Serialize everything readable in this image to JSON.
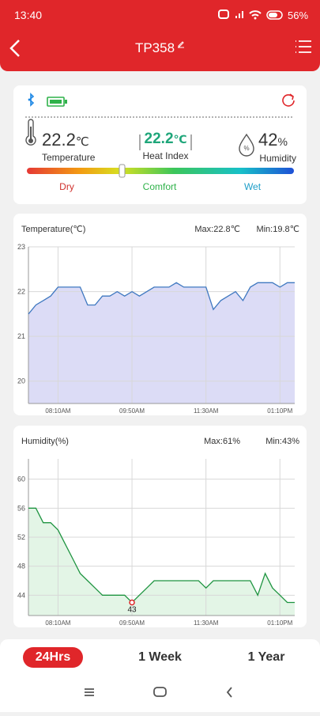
{
  "status_bar": {
    "time": "13:40",
    "battery": "56%"
  },
  "header": {
    "title": "TP358"
  },
  "summary": {
    "temperature": {
      "value": 22.2,
      "unit": "℃",
      "label": "Temperature"
    },
    "heat_index": {
      "value": 22.2,
      "unit": "℃",
      "label": "Heat Index"
    },
    "humidity": {
      "value": 42,
      "unit": "%",
      "label": "Humidity"
    },
    "scale": [
      "Dry",
      "Comfort",
      "Wet"
    ]
  },
  "chart_data": [
    {
      "type": "line",
      "title": "Temperature(℃)",
      "max_label": "Max:22.8℃",
      "min_label": "Min:19.8℃",
      "x": [
        "07:30AM",
        "07:40AM",
        "07:50AM",
        "08:00AM",
        "08:10AM",
        "08:20AM",
        "08:30AM",
        "08:40AM",
        "08:50AM",
        "09:00AM",
        "09:10AM",
        "09:20AM",
        "09:30AM",
        "09:40AM",
        "09:50AM",
        "10:00AM",
        "10:10AM",
        "10:20AM",
        "10:30AM",
        "10:40AM",
        "10:50AM",
        "11:00AM",
        "11:10AM",
        "11:20AM",
        "11:30AM",
        "11:40AM",
        "11:50AM",
        "12:00PM",
        "12:10PM",
        "12:20PM",
        "12:30PM",
        "12:40PM",
        "12:50PM",
        "01:00PM",
        "01:10PM",
        "01:20PM",
        "01:30PM"
      ],
      "values": [
        21.5,
        21.7,
        21.8,
        21.9,
        22.1,
        22.1,
        22.1,
        22.1,
        21.7,
        21.7,
        21.9,
        21.9,
        22.0,
        21.9,
        22.0,
        21.9,
        22.0,
        22.1,
        22.1,
        22.1,
        22.2,
        22.1,
        22.1,
        22.1,
        22.1,
        21.6,
        21.8,
        21.9,
        22.0,
        21.8,
        22.1,
        22.2,
        22.2,
        22.2,
        22.1,
        22.2,
        22.2
      ],
      "color": "#3f78c0",
      "fill": "#dcdcf6",
      "xlim": [
        "07:30AM",
        "01:30PM"
      ],
      "xticks": [
        "08:10AM",
        "09:50AM",
        "11:30AM",
        "01:10PM"
      ],
      "ylim": [
        19.5,
        23
      ],
      "yticks": [
        20,
        21,
        22,
        23
      ],
      "grid": true
    },
    {
      "type": "line",
      "title": "Humidity(%)",
      "max_label": "Max:61%",
      "min_label": "Min:43%",
      "x": [
        "07:30AM",
        "07:40AM",
        "07:50AM",
        "08:00AM",
        "08:10AM",
        "08:20AM",
        "08:30AM",
        "08:40AM",
        "08:50AM",
        "09:00AM",
        "09:10AM",
        "09:20AM",
        "09:30AM",
        "09:40AM",
        "09:50AM",
        "10:00AM",
        "10:10AM",
        "10:20AM",
        "10:30AM",
        "10:40AM",
        "10:50AM",
        "11:00AM",
        "11:10AM",
        "11:20AM",
        "11:30AM",
        "11:40AM",
        "11:50AM",
        "12:00PM",
        "12:10PM",
        "12:20PM",
        "12:30PM",
        "12:40PM",
        "12:50PM",
        "01:00PM",
        "01:10PM",
        "01:20PM",
        "01:30PM"
      ],
      "values": [
        56,
        56,
        54,
        54,
        53,
        51,
        49,
        47,
        46,
        45,
        44,
        44,
        44,
        44,
        43,
        44,
        45,
        46,
        46,
        46,
        46,
        46,
        46,
        46,
        45,
        46,
        46,
        46,
        46,
        46,
        46,
        44,
        47,
        45,
        44,
        43,
        43
      ],
      "color": "#1e9440",
      "fill": "#e3f5e6",
      "xlim": [
        "07:30AM",
        "01:30PM"
      ],
      "xticks": [
        "08:10AM",
        "09:50AM",
        "11:30AM",
        "01:10PM"
      ],
      "ylim": [
        41.2,
        62.8
      ],
      "yticks": [
        44,
        48,
        52,
        56,
        60
      ],
      "grid": true,
      "annotation": {
        "x": "09:50AM",
        "value": 43
      }
    }
  ],
  "tabs": [
    "24Hrs",
    "1 Week",
    "1 Year"
  ]
}
